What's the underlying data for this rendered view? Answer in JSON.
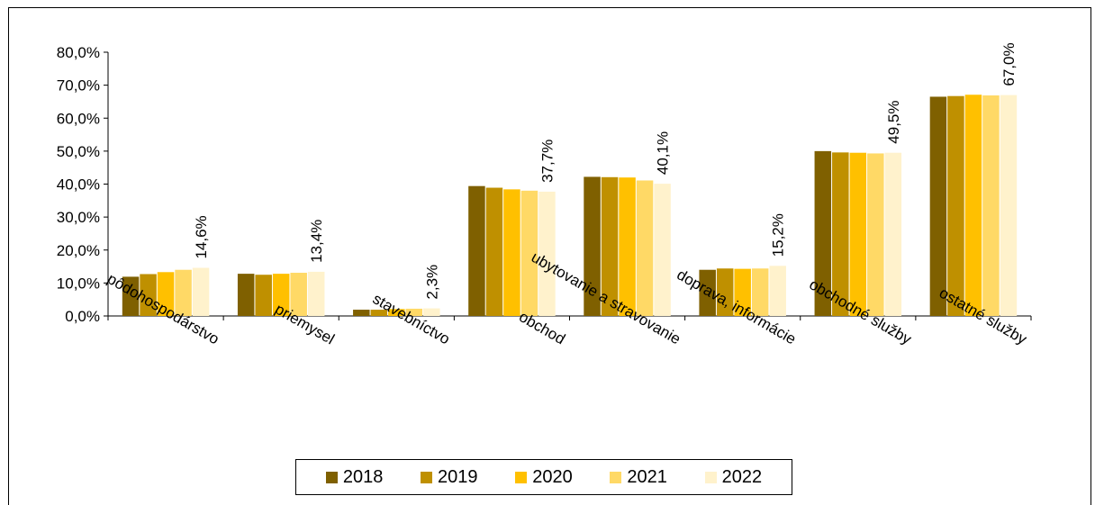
{
  "chart_data": {
    "type": "bar",
    "title": "",
    "categories": [
      "pôdohospodárstvo",
      "priemysel",
      "stavebníctvo",
      "obchod",
      "ubytovanie a stravovanie",
      "doprava, informácie",
      "obchodné služby",
      "ostatné služby"
    ],
    "series": [
      {
        "name": "2018",
        "color": "#7f6000",
        "values": [
          11.9,
          12.8,
          1.9,
          39.4,
          42.2,
          14.0,
          50.0,
          66.5
        ]
      },
      {
        "name": "2019",
        "color": "#bf9000",
        "values": [
          12.7,
          12.5,
          1.9,
          38.9,
          42.1,
          14.4,
          49.6,
          66.7
        ]
      },
      {
        "name": "2020",
        "color": "#ffc000",
        "values": [
          13.3,
          12.8,
          2.1,
          38.4,
          42.0,
          14.3,
          49.5,
          67.1
        ]
      },
      {
        "name": "2021",
        "color": "#ffd966",
        "values": [
          14.0,
          13.1,
          2.2,
          38.0,
          41.1,
          14.4,
          49.3,
          66.9
        ]
      },
      {
        "name": "2022",
        "color": "#fff2cc",
        "values": [
          14.6,
          13.4,
          2.3,
          37.7,
          40.1,
          15.2,
          49.5,
          67.0
        ]
      }
    ],
    "data_labels": [
      "14,6%",
      "13,4%",
      "2,3%",
      "37,7%",
      "40,1%",
      "15,2%",
      "49,5%",
      "67,0%"
    ],
    "y_ticks": [
      "0,0%",
      "10,0%",
      "20,0%",
      "30,0%",
      "40,0%",
      "50,0%",
      "60,0%",
      "70,0%",
      "80,0%"
    ],
    "ylim": [
      0,
      80
    ],
    "grid": false,
    "legend_position": "bottom"
  }
}
